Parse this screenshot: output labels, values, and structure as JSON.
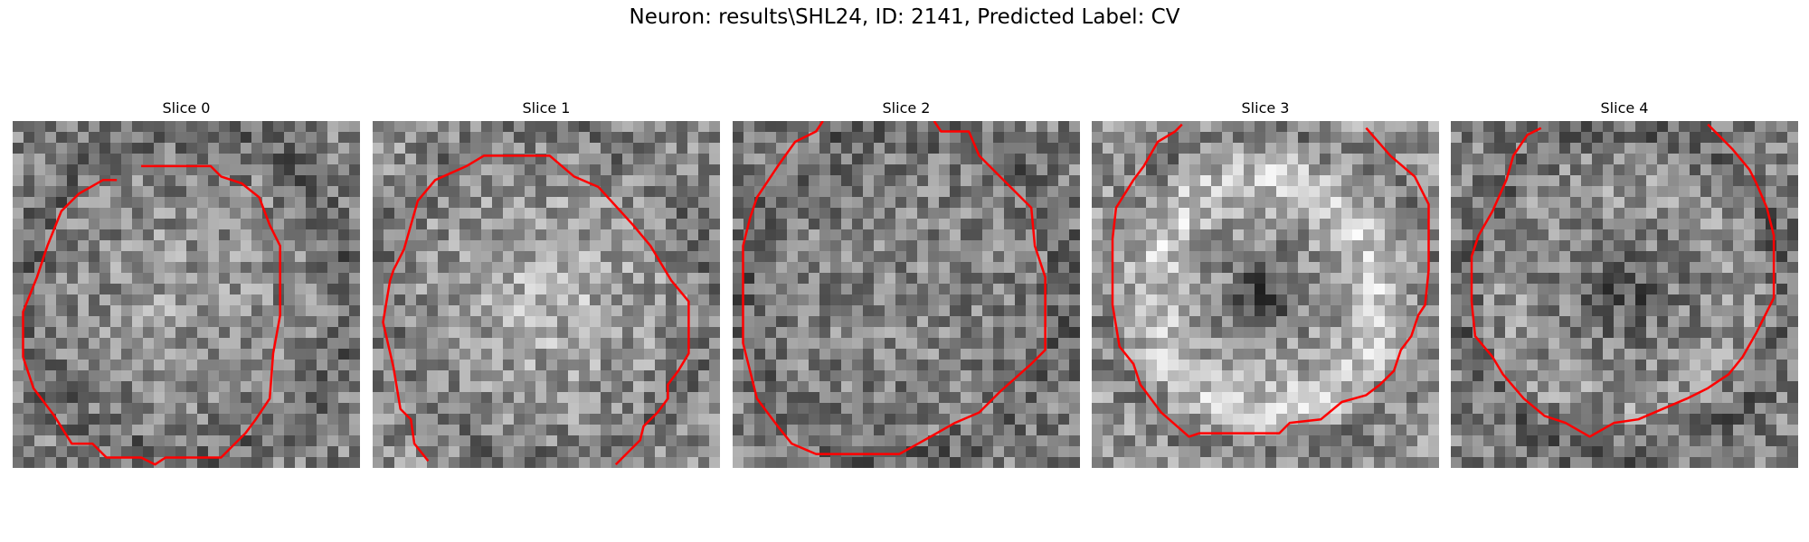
{
  "figure": {
    "title": "Neuron: results\\SHL24, ID: 2141, Predicted Label: CV",
    "contour_color": "#ff0000",
    "colormap": "grayscale"
  },
  "slices": [
    {
      "title": "Slice 0",
      "mean_gray": 128,
      "center_bright": 0.6,
      "ring": 0.0,
      "hole": 0.0,
      "seed": 11,
      "contour": [
        [
          0.37,
          0.13
        ],
        [
          0.57,
          0.13
        ],
        [
          0.6,
          0.16
        ],
        [
          0.66,
          0.18
        ],
        [
          0.71,
          0.22
        ],
        [
          0.74,
          0.3
        ],
        [
          0.77,
          0.36
        ],
        [
          0.77,
          0.56
        ],
        [
          0.75,
          0.67
        ],
        [
          0.74,
          0.8
        ],
        [
          0.7,
          0.86
        ],
        [
          0.67,
          0.9
        ],
        [
          0.6,
          0.97
        ],
        [
          0.44,
          0.97
        ],
        [
          0.41,
          0.99
        ],
        [
          0.37,
          0.97
        ],
        [
          0.27,
          0.97
        ],
        [
          0.23,
          0.93
        ],
        [
          0.17,
          0.93
        ],
        [
          0.12,
          0.85
        ],
        [
          0.06,
          0.77
        ],
        [
          0.03,
          0.68
        ],
        [
          0.03,
          0.55
        ],
        [
          0.07,
          0.45
        ],
        [
          0.1,
          0.36
        ],
        [
          0.14,
          0.26
        ],
        [
          0.19,
          0.21
        ],
        [
          0.26,
          0.17
        ],
        [
          0.3,
          0.17
        ]
      ]
    },
    {
      "title": "Slice 1",
      "mean_gray": 140,
      "center_bright": 0.85,
      "ring": 0.0,
      "hole": 0.0,
      "seed": 23,
      "contour": [
        [
          0.16,
          0.98
        ],
        [
          0.12,
          0.93
        ],
        [
          0.11,
          0.86
        ],
        [
          0.08,
          0.83
        ],
        [
          0.06,
          0.71
        ],
        [
          0.03,
          0.58
        ],
        [
          0.05,
          0.46
        ],
        [
          0.06,
          0.43
        ],
        [
          0.09,
          0.37
        ],
        [
          0.13,
          0.23
        ],
        [
          0.18,
          0.17
        ],
        [
          0.27,
          0.13
        ],
        [
          0.32,
          0.1
        ],
        [
          0.44,
          0.1
        ],
        [
          0.51,
          0.1
        ],
        [
          0.58,
          0.16
        ],
        [
          0.65,
          0.19
        ],
        [
          0.75,
          0.3
        ],
        [
          0.8,
          0.36
        ],
        [
          0.86,
          0.46
        ],
        [
          0.91,
          0.52
        ],
        [
          0.91,
          0.67
        ],
        [
          0.88,
          0.72
        ],
        [
          0.85,
          0.76
        ],
        [
          0.85,
          0.8
        ],
        [
          0.82,
          0.84
        ],
        [
          0.78,
          0.88
        ],
        [
          0.77,
          0.92
        ],
        [
          0.7,
          0.99
        ]
      ]
    },
    {
      "title": "Slice 2",
      "mean_gray": 125,
      "center_bright": 0.2,
      "ring": 0.0,
      "hole": 0.0,
      "seed": 37,
      "contour": [
        [
          0.26,
          0.0
        ],
        [
          0.24,
          0.03
        ],
        [
          0.18,
          0.06
        ],
        [
          0.13,
          0.13
        ],
        [
          0.07,
          0.22
        ],
        [
          0.05,
          0.28
        ],
        [
          0.03,
          0.36
        ],
        [
          0.03,
          0.64
        ],
        [
          0.05,
          0.72
        ],
        [
          0.07,
          0.8
        ],
        [
          0.1,
          0.84
        ],
        [
          0.13,
          0.88
        ],
        [
          0.17,
          0.93
        ],
        [
          0.24,
          0.96
        ],
        [
          0.28,
          0.96
        ],
        [
          0.48,
          0.96
        ],
        [
          0.57,
          0.91
        ],
        [
          0.64,
          0.87
        ],
        [
          0.71,
          0.84
        ],
        [
          0.77,
          0.78
        ],
        [
          0.86,
          0.7
        ],
        [
          0.9,
          0.66
        ],
        [
          0.9,
          0.45
        ],
        [
          0.87,
          0.36
        ],
        [
          0.86,
          0.25
        ],
        [
          0.76,
          0.15
        ],
        [
          0.71,
          0.1
        ],
        [
          0.68,
          0.03
        ],
        [
          0.6,
          0.03
        ],
        [
          0.58,
          0.0
        ]
      ]
    },
    {
      "title": "Slice 3",
      "mean_gray": 150,
      "center_bright": 0.0,
      "ring": 0.9,
      "hole": 0.85,
      "seed": 51,
      "contour": [
        [
          0.26,
          0.01
        ],
        [
          0.24,
          0.03
        ],
        [
          0.19,
          0.06
        ],
        [
          0.15,
          0.13
        ],
        [
          0.12,
          0.17
        ],
        [
          0.07,
          0.25
        ],
        [
          0.06,
          0.34
        ],
        [
          0.06,
          0.53
        ],
        [
          0.08,
          0.65
        ],
        [
          0.12,
          0.7
        ],
        [
          0.14,
          0.76
        ],
        [
          0.2,
          0.84
        ],
        [
          0.28,
          0.91
        ],
        [
          0.31,
          0.9
        ],
        [
          0.54,
          0.9
        ],
        [
          0.57,
          0.87
        ],
        [
          0.66,
          0.86
        ],
        [
          0.72,
          0.81
        ],
        [
          0.79,
          0.79
        ],
        [
          0.83,
          0.76
        ],
        [
          0.87,
          0.72
        ],
        [
          0.89,
          0.66
        ],
        [
          0.92,
          0.62
        ],
        [
          0.94,
          0.56
        ],
        [
          0.96,
          0.53
        ],
        [
          0.97,
          0.43
        ],
        [
          0.97,
          0.24
        ],
        [
          0.93,
          0.16
        ],
        [
          0.86,
          0.1
        ],
        [
          0.79,
          0.02
        ]
      ]
    },
    {
      "title": "Slice 4",
      "mean_gray": 128,
      "center_bright": 0.1,
      "ring": 0.35,
      "hole": 0.55,
      "seed": 67,
      "contour": [
        [
          0.26,
          0.02
        ],
        [
          0.22,
          0.04
        ],
        [
          0.18,
          0.1
        ],
        [
          0.16,
          0.17
        ],
        [
          0.12,
          0.26
        ],
        [
          0.08,
          0.33
        ],
        [
          0.06,
          0.39
        ],
        [
          0.06,
          0.52
        ],
        [
          0.07,
          0.62
        ],
        [
          0.12,
          0.68
        ],
        [
          0.15,
          0.73
        ],
        [
          0.21,
          0.8
        ],
        [
          0.27,
          0.85
        ],
        [
          0.33,
          0.87
        ],
        [
          0.4,
          0.91
        ],
        [
          0.47,
          0.87
        ],
        [
          0.54,
          0.86
        ],
        [
          0.61,
          0.83
        ],
        [
          0.68,
          0.8
        ],
        [
          0.74,
          0.77
        ],
        [
          0.8,
          0.73
        ],
        [
          0.84,
          0.68
        ],
        [
          0.88,
          0.61
        ],
        [
          0.91,
          0.55
        ],
        [
          0.93,
          0.51
        ],
        [
          0.93,
          0.43
        ],
        [
          0.93,
          0.33
        ],
        [
          0.91,
          0.25
        ],
        [
          0.88,
          0.18
        ],
        [
          0.86,
          0.14
        ],
        [
          0.81,
          0.08
        ],
        [
          0.74,
          0.01
        ]
      ]
    }
  ]
}
